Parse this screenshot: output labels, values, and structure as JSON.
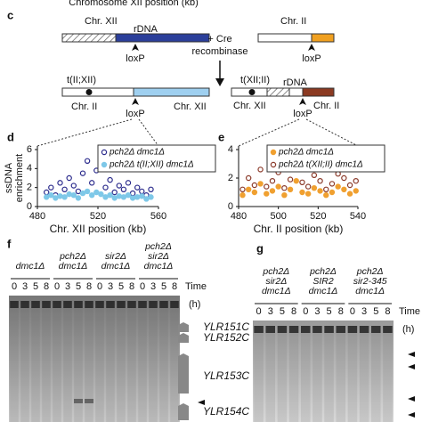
{
  "header_fragment": "Chromosome XII position (kb)",
  "panel_c": {
    "label": "c",
    "left_top": {
      "chr": "Chr. XII",
      "rdna": "rDNA",
      "loxp": "loxP"
    },
    "cre": [
      "+ Cre",
      "recombinase"
    ],
    "right_top": {
      "chr": "Chr. II",
      "loxp": "loxP"
    },
    "left_bottom": {
      "name": "t(II;XII)",
      "chr_left": "Chr. II",
      "chr_right": "Chr. XII",
      "loxp": "loxP"
    },
    "right_bottom": {
      "name": "t(XII;II)",
      "rdna": "rDNA",
      "chr_left": "Chr. XII",
      "chr_right": "Chr. II",
      "loxp": "loxP"
    }
  },
  "chart_data": [
    {
      "panel": "d",
      "type": "scatter",
      "ylabel": [
        "ssDNA",
        "enrichment"
      ],
      "xlabel": "Chr. XII position (kb)",
      "x": [
        486,
        489,
        492,
        495,
        498,
        501,
        504,
        507,
        510,
        513,
        516,
        519,
        522,
        525,
        528,
        531,
        534,
        537,
        540,
        543,
        546,
        549,
        552,
        555
      ],
      "series": [
        {
          "name": "pch2Δ dmc1Δ",
          "color": "#2b2b8c",
          "marker": "open",
          "values": [
            1.5,
            2.0,
            1.2,
            2.5,
            1.8,
            3.0,
            2.2,
            1.6,
            3.5,
            4.8,
            2.5,
            3.8,
            5.0,
            2.0,
            2.8,
            1.5,
            2.2,
            1.8,
            2.5,
            1.4,
            2.0,
            1.6,
            1.2,
            1.8
          ]
        },
        {
          "name": "pch2Δ t(II;XII) dmc1Δ",
          "color": "#7ec8e8",
          "marker": "filled",
          "values": [
            1.0,
            1.2,
            0.9,
            1.1,
            1.0,
            1.3,
            1.2,
            0.9,
            1.4,
            1.6,
            1.2,
            1.5,
            1.3,
            1.0,
            1.2,
            0.9,
            1.1,
            1.0,
            1.2,
            0.9,
            1.0,
            1.1,
            0.8,
            1.0
          ]
        }
      ],
      "xlim": [
        480,
        560
      ],
      "xticks": [
        480,
        520,
        560
      ],
      "ylim": [
        0,
        6
      ],
      "yticks": [
        0,
        2,
        4,
        6
      ]
    },
    {
      "panel": "e",
      "type": "scatter",
      "xlabel": "Chr. II position (kb)",
      "x": [
        482,
        485,
        488,
        491,
        494,
        497,
        500,
        503,
        506,
        509,
        512,
        515,
        518,
        521,
        524,
        527,
        530,
        533,
        536,
        539
      ],
      "series": [
        {
          "name": "pch2Δ dmc1Δ",
          "color": "#f0a030",
          "marker": "filled",
          "values": [
            0.8,
            1.2,
            1.0,
            1.6,
            0.9,
            1.1,
            1.4,
            0.8,
            1.2,
            1.8,
            1.0,
            0.9,
            1.3,
            1.1,
            0.8,
            1.0,
            1.4,
            1.2,
            0.9,
            1.1
          ]
        },
        {
          "name": "pch2Δ t(XII;II) dmc1Δ",
          "color": "#8b3a2a",
          "marker": "open",
          "values": [
            1.2,
            2.0,
            1.5,
            2.6,
            1.4,
            1.8,
            2.4,
            1.3,
            1.9,
            3.0,
            1.7,
            1.4,
            2.2,
            1.8,
            1.2,
            1.6,
            2.3,
            2.0,
            1.5,
            1.8
          ]
        }
      ],
      "xlim": [
        480,
        540
      ],
      "xticks": [
        480,
        500,
        520,
        540
      ],
      "ylim": [
        0,
        4
      ],
      "yticks": [
        0,
        2,
        4
      ]
    }
  ],
  "panel_f": {
    "label": "f",
    "time_label": "Time",
    "unit": "(h)",
    "groups": [
      {
        "label": [
          "dmc1Δ"
        ],
        "times": [
          0,
          3,
          5,
          8
        ]
      },
      {
        "label": [
          "pch2Δ",
          "dmc1Δ"
        ],
        "times": [
          0,
          3,
          5,
          8
        ]
      },
      {
        "label": [
          "sir2Δ",
          "dmc1Δ"
        ],
        "times": [
          0,
          3,
          5,
          8
        ]
      },
      {
        "label": [
          "pch2Δ",
          "sir2Δ",
          "dmc1Δ"
        ],
        "times": [
          0,
          3,
          5,
          8
        ]
      }
    ],
    "genes": [
      "YLR151C",
      "YLR152C",
      "YLR153C",
      "YLR154C"
    ]
  },
  "panel_g": {
    "label": "g",
    "time_label": "Time",
    "unit": "(h)",
    "groups": [
      {
        "label": [
          "pch2Δ",
          "sir2Δ",
          "dmc1Δ"
        ],
        "times": [
          0,
          3,
          5,
          8
        ]
      },
      {
        "label": [
          "pch2Δ",
          "SIR2",
          "dmc1Δ"
        ],
        "times": [
          0,
          3,
          5,
          8
        ]
      },
      {
        "label": [
          "pch2Δ",
          "sir2-345",
          "dmc1Δ"
        ],
        "times": [
          0,
          3,
          5,
          8
        ]
      }
    ]
  }
}
